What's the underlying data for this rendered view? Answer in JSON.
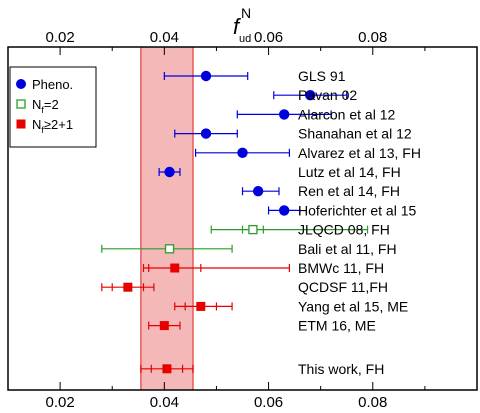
{
  "chart_data": {
    "type": "scatter",
    "xlabel": "f",
    "xlabel_super": "N",
    "xlabel_sub": "ud",
    "xlim": [
      0.01,
      0.1
    ],
    "xticks": [
      "0.02",
      "0.04",
      "0.06",
      "0.08"
    ],
    "xtick_values": [
      0.02,
      0.04,
      0.06,
      0.08
    ],
    "band": {
      "lo": 0.0355,
      "hi": 0.0455,
      "color": "#f5b8b8"
    },
    "legend": {
      "placement": "top-left",
      "entries": [
        {
          "key": "pheno",
          "text": "Pheno.",
          "marker": "circle",
          "color": "#0000dd"
        },
        {
          "key": "nf2",
          "base": "N",
          "sub": "f",
          "rest": "=2",
          "marker": "open-square",
          "color": "#2a9d2a"
        },
        {
          "key": "nf21",
          "base": "N",
          "sub": "f",
          "rest": "≥2+1",
          "marker": "square",
          "color": "#e80000"
        }
      ]
    },
    "points": [
      {
        "label": "GLS 91",
        "series": "pheno",
        "value": 0.048,
        "lo": 0.04,
        "hi": 0.056
      },
      {
        "label": "Pavan 02",
        "series": "pheno",
        "value": 0.068,
        "lo": 0.061,
        "hi": 0.075
      },
      {
        "label": "Alarcon et al 12",
        "series": "pheno",
        "value": 0.063,
        "lo": 0.054,
        "hi": 0.072
      },
      {
        "label": "Shanahan et al 12",
        "series": "pheno",
        "value": 0.048,
        "lo": 0.042,
        "hi": 0.054
      },
      {
        "label": "Alvarez et al 13, FH",
        "series": "pheno",
        "value": 0.055,
        "lo": 0.046,
        "hi": 0.064
      },
      {
        "label": "Lutz et al 14, FH",
        "series": "pheno",
        "value": 0.041,
        "lo": 0.039,
        "hi": 0.043
      },
      {
        "label": "Ren et al 14, FH",
        "series": "pheno",
        "value": 0.058,
        "lo": 0.055,
        "hi": 0.062
      },
      {
        "label": "Hoferichter et al 15",
        "series": "pheno",
        "value": 0.063,
        "lo": 0.06,
        "hi": 0.066
      },
      {
        "label": "JLQCD 08, FH",
        "series": "nf2",
        "value": 0.057,
        "lo": 0.049,
        "hi": 0.079,
        "inner_lo": 0.055,
        "inner_hi": 0.059
      },
      {
        "label": "Bali et al 11, FH",
        "series": "nf2",
        "value": 0.041,
        "lo": 0.028,
        "hi": 0.053
      },
      {
        "label": "BMWc 11, FH",
        "series": "nf21",
        "value": 0.042,
        "lo": 0.036,
        "hi": 0.064,
        "inner_lo": 0.037,
        "inner_hi": 0.047
      },
      {
        "label": "QCDSF 11,FH",
        "series": "nf21",
        "value": 0.033,
        "lo": 0.028,
        "hi": 0.038,
        "inner_lo": 0.03,
        "inner_hi": 0.036
      },
      {
        "label": "Yang et al 15, ME",
        "series": "nf21",
        "value": 0.047,
        "lo": 0.042,
        "hi": 0.053,
        "inner_lo": 0.044,
        "inner_hi": 0.05
      },
      {
        "label": "ETM 16, ME",
        "series": "nf21",
        "value": 0.04,
        "lo": 0.037,
        "hi": 0.043
      },
      {
        "label": "This work, FH",
        "series": "nf21",
        "value": 0.0405,
        "lo": 0.0355,
        "hi": 0.0455,
        "inner_lo": 0.0375,
        "inner_hi": 0.0435,
        "gap_before": true
      }
    ]
  }
}
